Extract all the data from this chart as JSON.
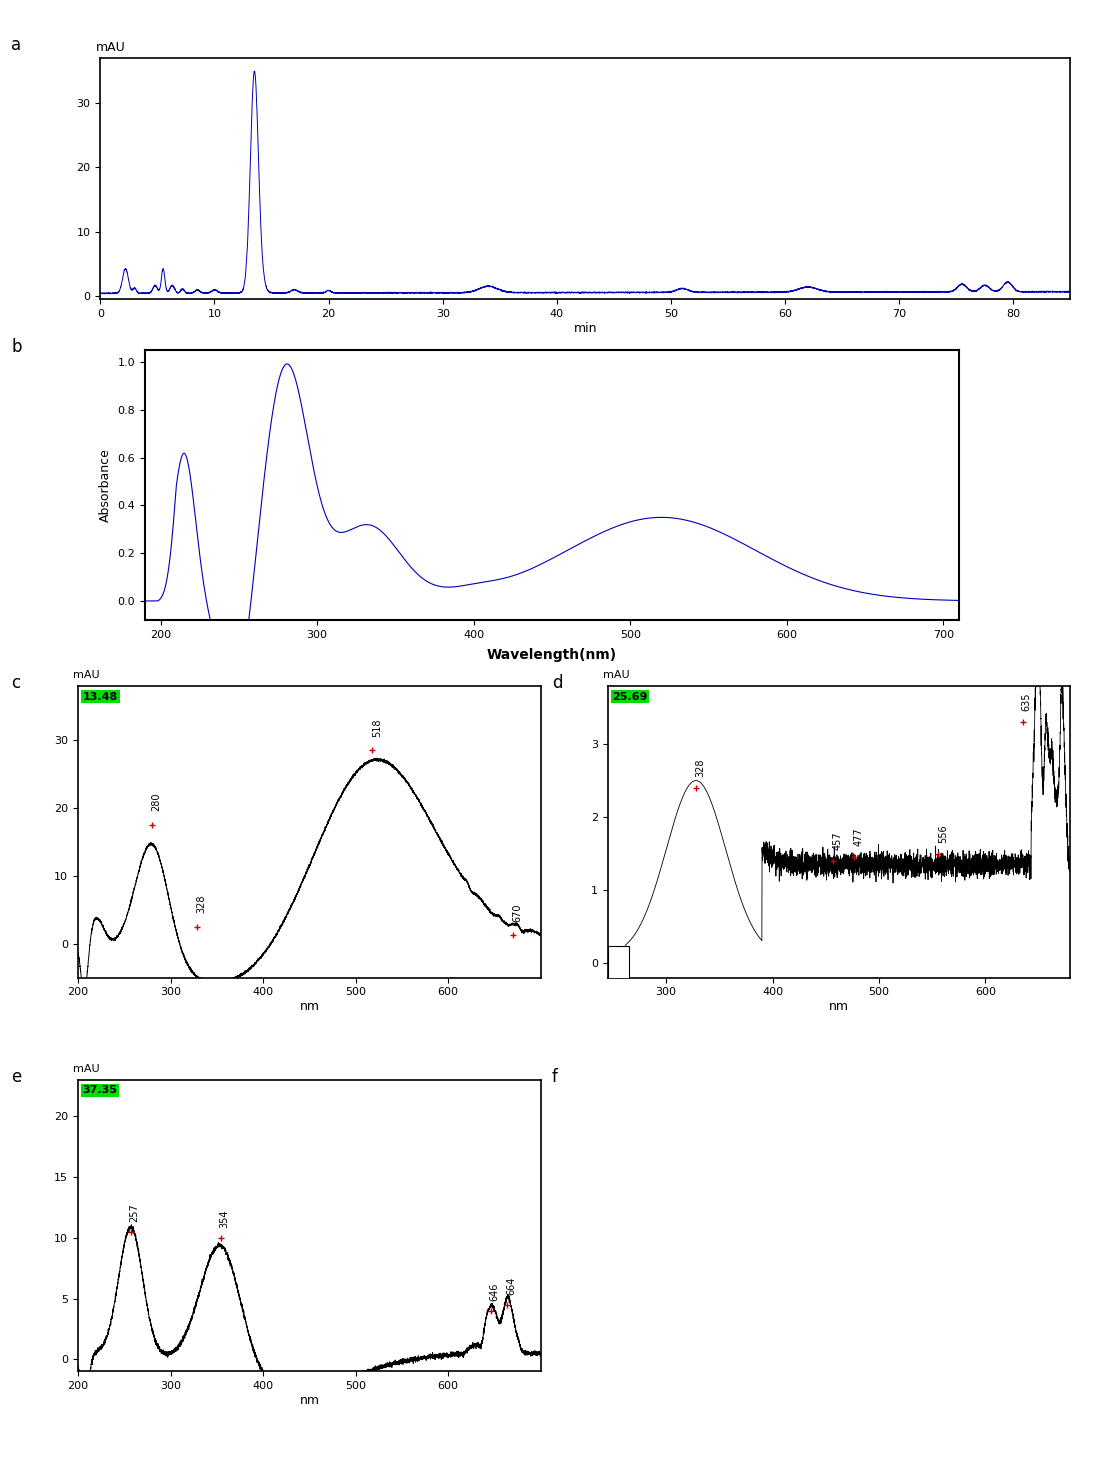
{
  "panel_a": {
    "ylabel": "mAU",
    "xlabel": "min",
    "xlim": [
      0,
      85
    ],
    "ylim": [
      -0.5,
      37
    ],
    "yticks": [
      0,
      10,
      20,
      30
    ],
    "xticks": [
      0,
      10,
      20,
      30,
      40,
      50,
      60,
      70,
      80
    ],
    "color": "#0000bb"
  },
  "panel_b": {
    "ylabel": "Absorbance",
    "xlabel": "Wavelength(nm)",
    "xlim": [
      190,
      710
    ],
    "ylim": [
      -0.08,
      1.05
    ],
    "yticks": [
      0.0,
      0.2,
      0.4,
      0.6,
      0.8,
      1.0
    ],
    "xticks": [
      200,
      300,
      400,
      500,
      600,
      700
    ],
    "color": "#0000bb"
  },
  "panel_c": {
    "ylabel": "mAU",
    "xlabel": "nm",
    "xlim": [
      200,
      700
    ],
    "ylim": [
      -5,
      38
    ],
    "yticks": [
      0,
      10,
      20,
      30
    ],
    "xticks": [
      200,
      300,
      400,
      500,
      600
    ],
    "color": "#000000",
    "green_label": "13.48",
    "peaks": [
      {
        "nm": 280,
        "val": 17.5
      },
      {
        "nm": 328,
        "val": 2.5
      },
      {
        "nm": 518,
        "val": 28.5
      },
      {
        "nm": 670,
        "val": 1.2
      }
    ]
  },
  "panel_d": {
    "ylabel": "mAU",
    "xlabel": "nm",
    "xlim": [
      245,
      680
    ],
    "ylim": [
      -0.2,
      3.8
    ],
    "yticks": [
      0,
      1,
      2,
      3
    ],
    "xticks": [
      300,
      400,
      500,
      600
    ],
    "color": "#000000",
    "green_label": "25.69",
    "peaks": [
      {
        "nm": 328,
        "val": 2.4
      },
      {
        "nm": 457,
        "val": 1.4
      },
      {
        "nm": 477,
        "val": 1.45
      },
      {
        "nm": 556,
        "val": 1.5
      },
      {
        "nm": 635,
        "val": 3.3
      }
    ]
  },
  "panel_e": {
    "ylabel": "mAU",
    "xlabel": "nm",
    "xlim": [
      200,
      700
    ],
    "ylim": [
      -1,
      23
    ],
    "yticks": [
      0,
      5,
      10,
      15,
      20
    ],
    "xticks": [
      200,
      300,
      400,
      500,
      600
    ],
    "color": "#000000",
    "green_label": "37.35",
    "peaks": [
      {
        "nm": 257,
        "val": 10.5
      },
      {
        "nm": 354,
        "val": 10.0
      },
      {
        "nm": 646,
        "val": 4.0
      },
      {
        "nm": 664,
        "val": 4.5
      }
    ]
  }
}
